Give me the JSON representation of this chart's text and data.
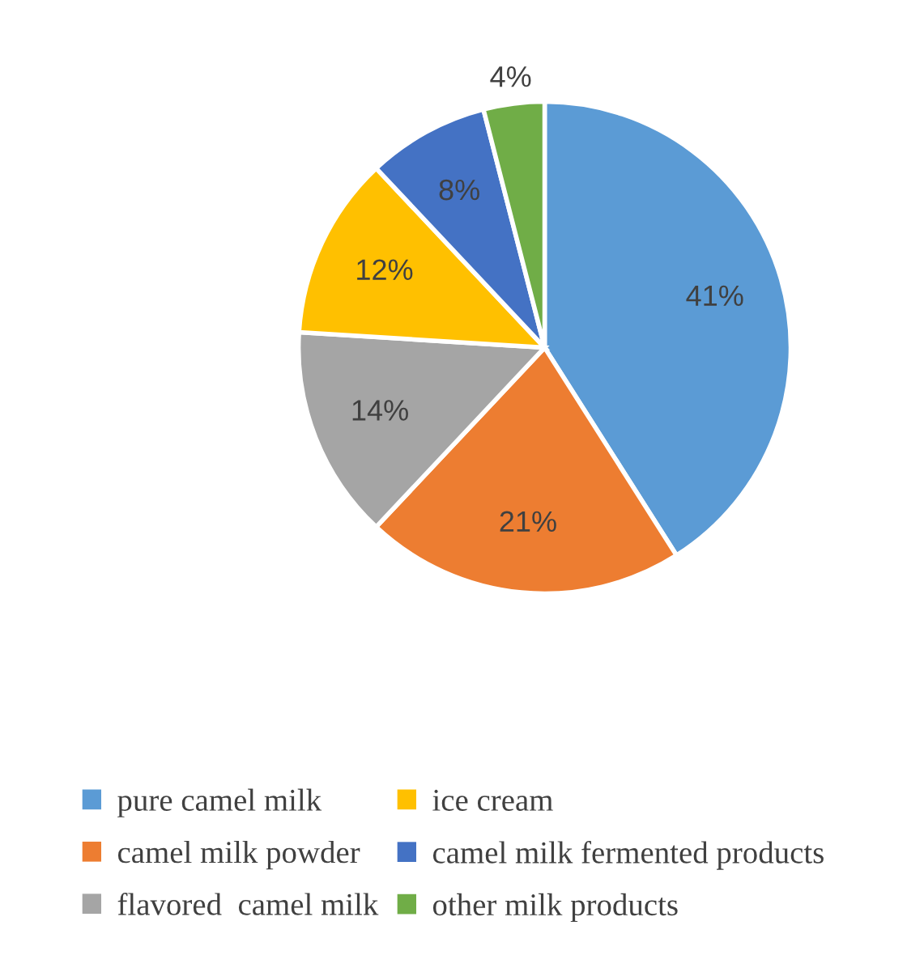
{
  "chart_data": {
    "type": "pie",
    "categories": [
      "pure camel milk",
      "camel milk powder",
      "flavored  camel milk",
      "ice cream",
      "camel milk fermented products",
      "other milk products"
    ],
    "values": [
      41,
      21,
      14,
      12,
      8,
      4
    ],
    "value_labels": [
      "41%",
      "21%",
      "14%",
      "12%",
      "8%",
      "4%"
    ],
    "colors": [
      "#5b9bd5",
      "#ed7d31",
      "#a5a5a5",
      "#ffc000",
      "#4472c4",
      "#70ad47"
    ],
    "legend": "bottom"
  }
}
